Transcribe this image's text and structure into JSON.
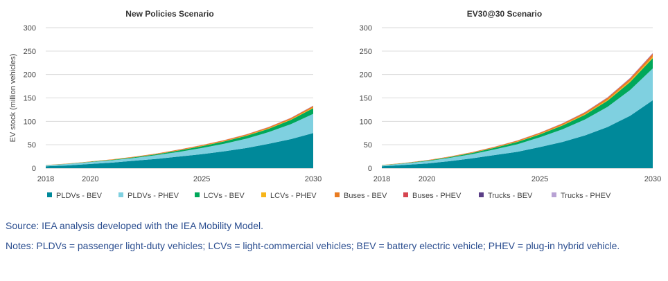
{
  "chart_data": [
    {
      "type": "area",
      "stacked": true,
      "title": "New Policies Scenario",
      "ylabel": "EV stock (million vehicles)",
      "xlabel": "",
      "ylim": [
        0,
        300
      ],
      "yticks": [
        0,
        50,
        100,
        150,
        200,
        250,
        300
      ],
      "xlim": [
        2018,
        2030
      ],
      "xticks": [
        2018,
        2020,
        2025,
        2030
      ],
      "grid": true,
      "x": [
        2018,
        2019,
        2020,
        2021,
        2022,
        2023,
        2024,
        2025,
        2026,
        2027,
        2028,
        2029,
        2030
      ],
      "series": [
        {
          "name": "PLDVs - BEV",
          "values": [
            4,
            6,
            9,
            12,
            16,
            20,
            25,
            30,
            36,
            43,
            52,
            62,
            75
          ]
        },
        {
          "name": "PLDVs - PHEV",
          "values": [
            2,
            3,
            4,
            5,
            6,
            8,
            10,
            13,
            16,
            20,
            25,
            32,
            41
          ]
        },
        {
          "name": "LCVs - BEV",
          "values": [
            0.2,
            0.4,
            0.6,
            1,
            1.5,
            2,
            3,
            4,
            5,
            6,
            7,
            9,
            12
          ]
        },
        {
          "name": "LCVs - PHEV",
          "values": [
            0,
            0.1,
            0.1,
            0.2,
            0.2,
            0.3,
            0.4,
            0.5,
            0.7,
            0.9,
            1,
            1.2,
            1.5
          ]
        },
        {
          "name": "Buses - BEV",
          "values": [
            0.4,
            0.5,
            0.7,
            0.8,
            1,
            1.2,
            1.4,
            1.6,
            1.8,
            2,
            2.3,
            2.6,
            3
          ]
        },
        {
          "name": "Buses - PHEV",
          "values": [
            0,
            0,
            0,
            0.1,
            0.1,
            0.1,
            0.2,
            0.2,
            0.3,
            0.3,
            0.4,
            0.5,
            0.6
          ]
        },
        {
          "name": "Trucks - BEV",
          "values": [
            0,
            0,
            0,
            0,
            0,
            0,
            0.1,
            0.1,
            0.1,
            0.1,
            0.2,
            0.2,
            0.3
          ]
        },
        {
          "name": "Trucks - PHEV",
          "values": [
            0,
            0,
            0,
            0,
            0,
            0,
            0,
            0,
            0.1,
            0.1,
            0.1,
            0.1,
            0.2
          ]
        }
      ]
    },
    {
      "type": "area",
      "stacked": true,
      "title": "EV30@30 Scenario",
      "ylabel": "",
      "xlabel": "",
      "ylim": [
        0,
        300
      ],
      "yticks": [
        0,
        50,
        100,
        150,
        200,
        250,
        300
      ],
      "xlim": [
        2018,
        2030
      ],
      "xticks": [
        2018,
        2020,
        2025,
        2030
      ],
      "grid": true,
      "x": [
        2018,
        2019,
        2020,
        2021,
        2022,
        2023,
        2024,
        2025,
        2026,
        2027,
        2028,
        2029,
        2030
      ],
      "series": [
        {
          "name": "PLDVs - BEV",
          "values": [
            4,
            7,
            10,
            15,
            21,
            28,
            35,
            45,
            56,
            70,
            88,
            112,
            145
          ]
        },
        {
          "name": "PLDVs - PHEV",
          "values": [
            2,
            3,
            5,
            7,
            9,
            12,
            16,
            21,
            27,
            34,
            43,
            55,
            68
          ]
        },
        {
          "name": "LCVs - BEV",
          "values": [
            0.3,
            0.5,
            1,
            1.5,
            2.5,
            3.5,
            5,
            6,
            8,
            10,
            13,
            17,
            22
          ]
        },
        {
          "name": "LCVs - PHEV",
          "values": [
            0.1,
            0.1,
            0.2,
            0.3,
            0.4,
            0.5,
            0.7,
            0.9,
            1.2,
            1.5,
            2,
            2.5,
            3
          ]
        },
        {
          "name": "Buses - BEV",
          "values": [
            0.4,
            0.6,
            0.8,
            1,
            1.3,
            1.6,
            2,
            2.4,
            2.8,
            3.3,
            4,
            4.6,
            5.5
          ]
        },
        {
          "name": "Buses - PHEV",
          "values": [
            0,
            0,
            0.1,
            0.1,
            0.2,
            0.2,
            0.3,
            0.4,
            0.5,
            0.6,
            0.7,
            0.9,
            1.2
          ]
        },
        {
          "name": "Trucks - BEV",
          "values": [
            0,
            0,
            0,
            0,
            0,
            0.1,
            0.1,
            0.2,
            0.2,
            0.3,
            0.4,
            0.5,
            0.7
          ]
        },
        {
          "name": "Trucks - PHEV",
          "values": [
            0,
            0,
            0,
            0,
            0,
            0.1,
            0.1,
            0.1,
            0.2,
            0.3,
            0.4,
            0.5,
            0.7
          ]
        }
      ]
    }
  ],
  "legend": {
    "placement": "bottom",
    "items": [
      {
        "name": "PLDVs - BEV",
        "color": "#00899a"
      },
      {
        "name": "PLDVs - PHEV",
        "color": "#7fd0e0"
      },
      {
        "name": "LCVs - BEV",
        "color": "#00a85a"
      },
      {
        "name": "LCVs - PHEV",
        "color": "#f7b519"
      },
      {
        "name": "Buses - BEV",
        "color": "#e97c22"
      },
      {
        "name": "Buses - PHEV",
        "color": "#d64550"
      },
      {
        "name": "Trucks - BEV",
        "color": "#5b3f87"
      },
      {
        "name": "Trucks - PHEV",
        "color": "#b8a2d4"
      }
    ]
  },
  "notes": {
    "source": "Source: IEA analysis developed with the IEA Mobility Model.",
    "notes": "Notes: PLDVs = passenger light-duty vehicles; LCVs = light-commercial vehicles; BEV = battery electric vehicle; PHEV = plug-in hybrid vehicle."
  }
}
